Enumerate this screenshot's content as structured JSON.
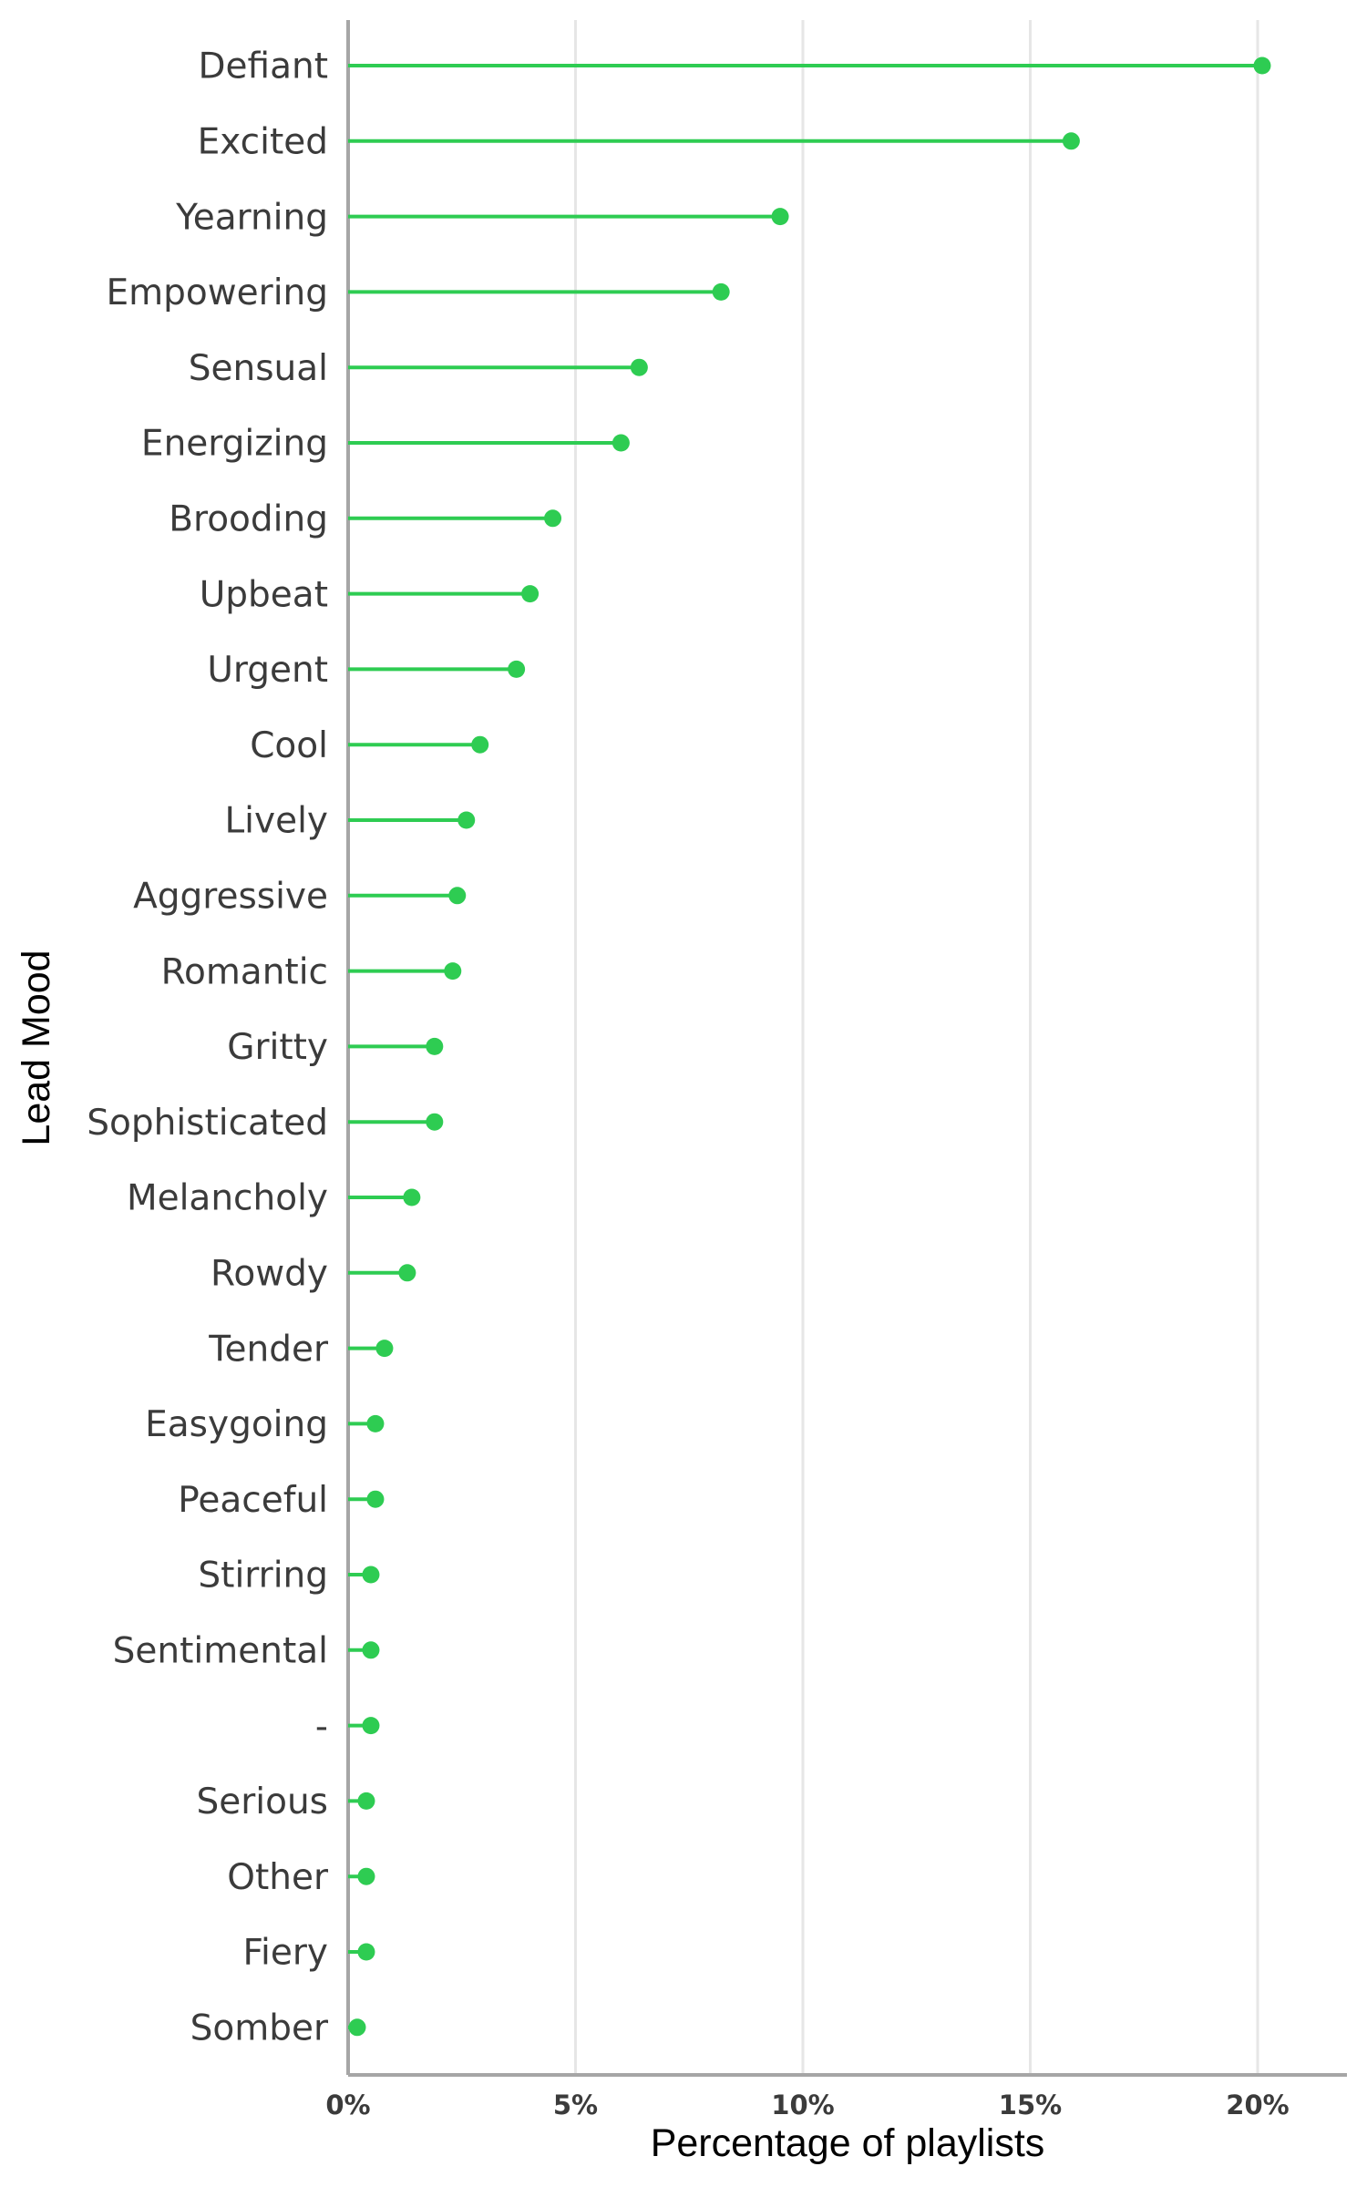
{
  "chart_data": {
    "type": "lollipop",
    "orientation": "horizontal",
    "xlabel": "Percentage of playlists",
    "ylabel": "Lead Mood",
    "xlim": [
      0,
      22
    ],
    "x_ticks": [
      0,
      5,
      10,
      15,
      20
    ],
    "x_tick_labels": [
      "0%",
      "5%",
      "10%",
      "15%",
      "20%"
    ],
    "grid": "vertical major gridlines",
    "color": "#2ecc52",
    "categories": [
      "Defiant",
      "Excited",
      "Yearning",
      "Empowering",
      "Sensual",
      "Energizing",
      "Brooding",
      "Upbeat",
      "Urgent",
      "Cool",
      "Lively",
      "Aggressive",
      "Romantic",
      "Gritty",
      "Sophisticated",
      "Melancholy",
      "Rowdy",
      "Tender",
      "Easygoing",
      "Peaceful",
      "Stirring",
      "Sentimental",
      "-",
      "Serious",
      "Other",
      "Fiery",
      "Somber"
    ],
    "values": [
      20.1,
      15.9,
      9.5,
      8.2,
      6.4,
      6.0,
      4.5,
      4.0,
      3.7,
      2.9,
      2.6,
      2.4,
      2.3,
      1.9,
      1.9,
      1.4,
      1.3,
      0.8,
      0.6,
      0.6,
      0.5,
      0.5,
      0.5,
      0.4,
      0.4,
      0.4,
      0.2
    ]
  }
}
